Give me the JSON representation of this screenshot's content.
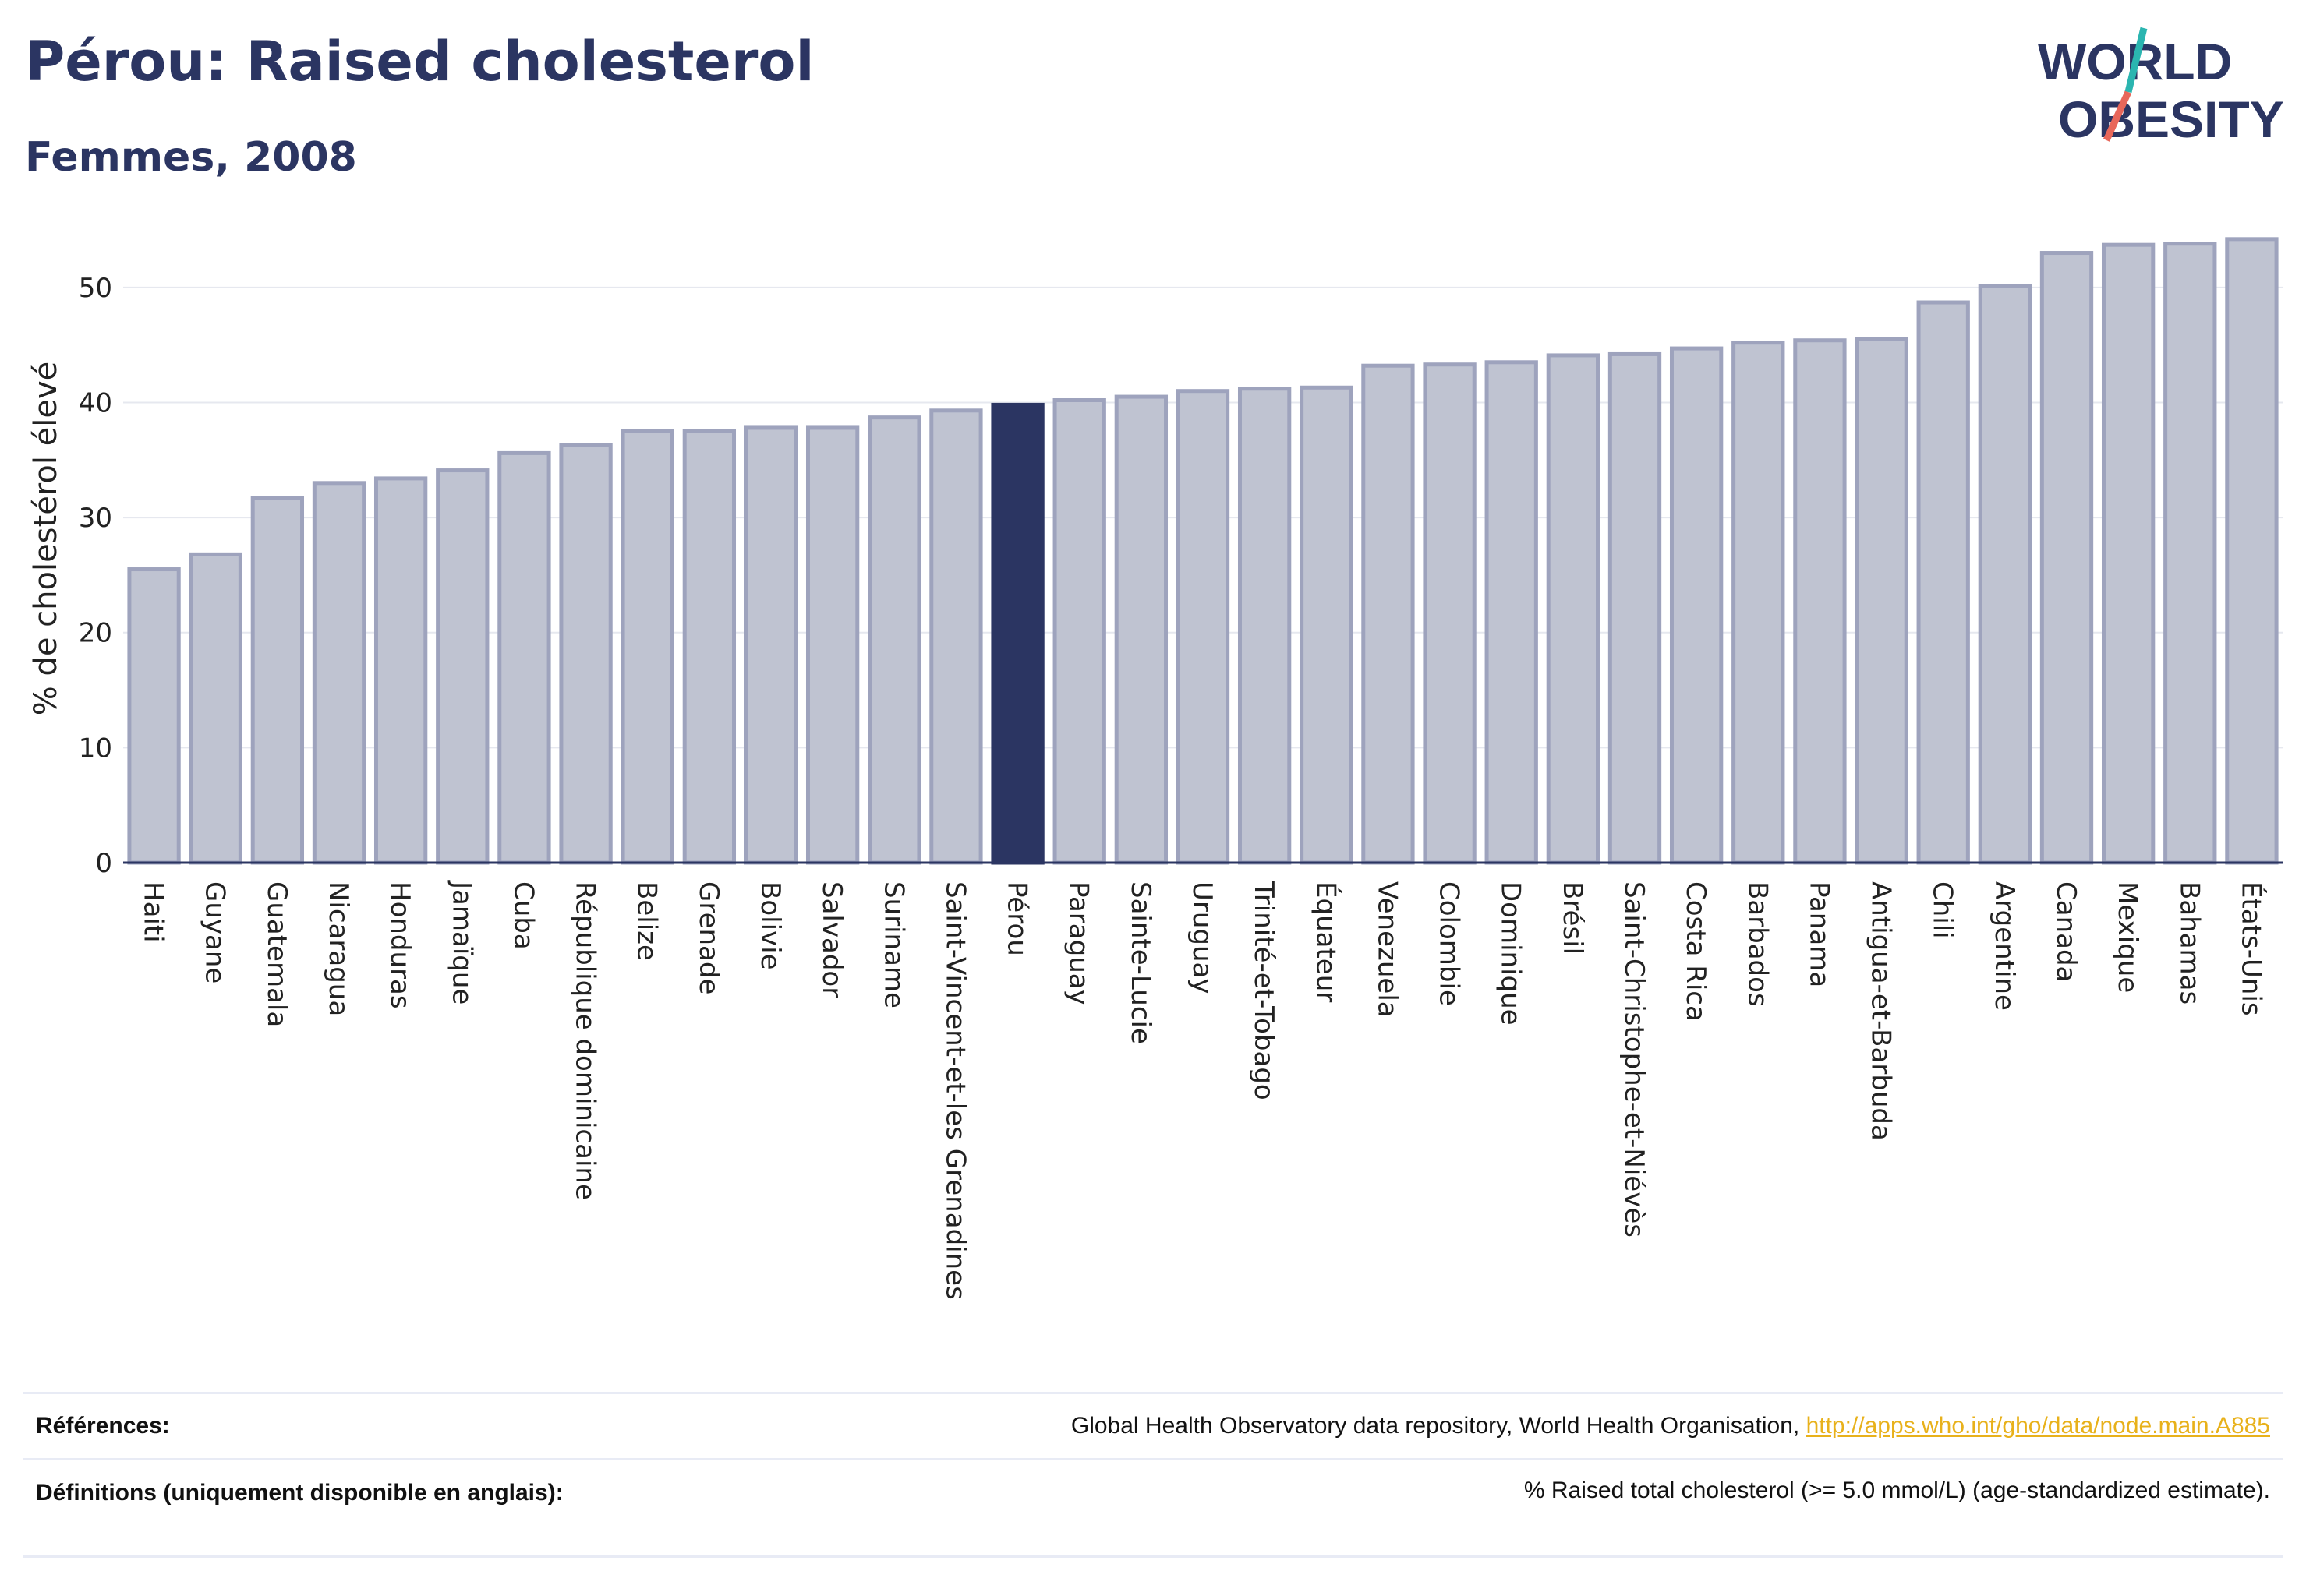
{
  "header": {
    "title": "Pérou: Raised cholesterol",
    "subtitle": "Femmes, 2008"
  },
  "logo": {
    "line1": "WORLD",
    "line2": "OBESITY",
    "colors": {
      "text": "#2b3562",
      "slash_teal": "#2bb5b0",
      "slash_coral": "#e8675a"
    }
  },
  "chart_data": {
    "type": "bar",
    "title": "",
    "xlabel": "",
    "ylabel": "% de cholestérol élevé",
    "ylim": [
      0,
      55
    ],
    "yticks": [
      0,
      10,
      20,
      30,
      40,
      50
    ],
    "grid": true,
    "highlight": "Pérou",
    "colors": {
      "bar": "#bfc3d1",
      "bar_edge": "#9ea3bd",
      "highlight": "#2b3562",
      "axis": "#2b3562",
      "grid": "#e6e8ef"
    },
    "categories": [
      "Haiti",
      "Guyane",
      "Guatemala",
      "Nicaragua",
      "Honduras",
      "Jamaïque",
      "Cuba",
      "République dominicaine",
      "Belize",
      "Grenade",
      "Bolivie",
      "Salvador",
      "Suriname",
      "Saint-Vincent-et-les Grenadines",
      "Pérou",
      "Paraguay",
      "Sainte-Lucie",
      "Uruguay",
      "Trinité-et-Tobago",
      "Équateur",
      "Venezuela",
      "Colombie",
      "Dominique",
      "Brésil",
      "Saint-Christophe-et-Niévès",
      "Costa Rica",
      "Barbados",
      "Panama",
      "Antigua-et-Barbuda",
      "Chili",
      "Argentine",
      "Canada",
      "Mexique",
      "Bahamas",
      "États-Unis"
    ],
    "values": [
      25.5,
      26.8,
      31.7,
      33.0,
      33.4,
      34.1,
      35.6,
      36.3,
      37.5,
      37.5,
      37.8,
      37.8,
      38.7,
      39.3,
      39.8,
      40.2,
      40.5,
      41.0,
      41.2,
      41.3,
      43.2,
      43.3,
      43.5,
      44.1,
      44.2,
      44.7,
      45.2,
      45.4,
      45.5,
      48.7,
      50.1,
      53.0,
      53.7,
      53.8,
      54.2
    ]
  },
  "references": {
    "label": "Références:",
    "text": "Global Health Observatory data repository, World Health Organisation,",
    "link": "http://apps.who.int/gho/data/node.main.A885"
  },
  "definitions": {
    "label": "Définitions (uniquement disponible en anglais):",
    "text": "% Raised total cholesterol (>= 5.0 mmol/L) (age-standardized estimate)."
  }
}
